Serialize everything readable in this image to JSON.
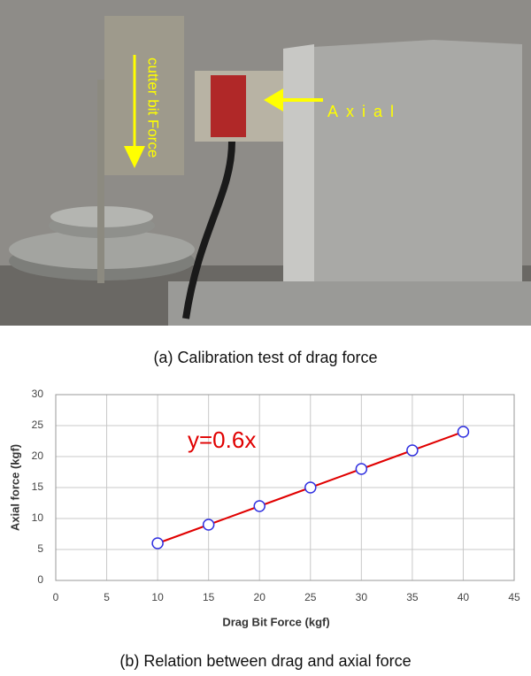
{
  "photo": {
    "labels": [
      "Axial",
      "cutter bit Force"
    ]
  },
  "captions": [
    "(a)  Calibration test of drag force",
    "(b)  Relation between drag and axial force"
  ],
  "chart_data": {
    "type": "line",
    "x_label": "Drag Bit Force (kgf)",
    "y_label": "Axial force (kgf)",
    "annotation": "y=0.6x",
    "x": [
      10,
      15,
      20,
      25,
      30,
      35,
      40
    ],
    "series": [
      {
        "color": "#e00000",
        "marker_color": "#3030e0",
        "values": [
          6,
          9,
          12,
          15,
          18,
          21,
          24
        ]
      }
    ],
    "xlim": [
      0,
      45
    ],
    "xticks": [
      0,
      5,
      10,
      15,
      20,
      25,
      30,
      35,
      40,
      45
    ],
    "ylim": [
      0,
      30
    ],
    "yticks": [
      0,
      5,
      10,
      15,
      20,
      25,
      30
    ],
    "grid": true
  }
}
